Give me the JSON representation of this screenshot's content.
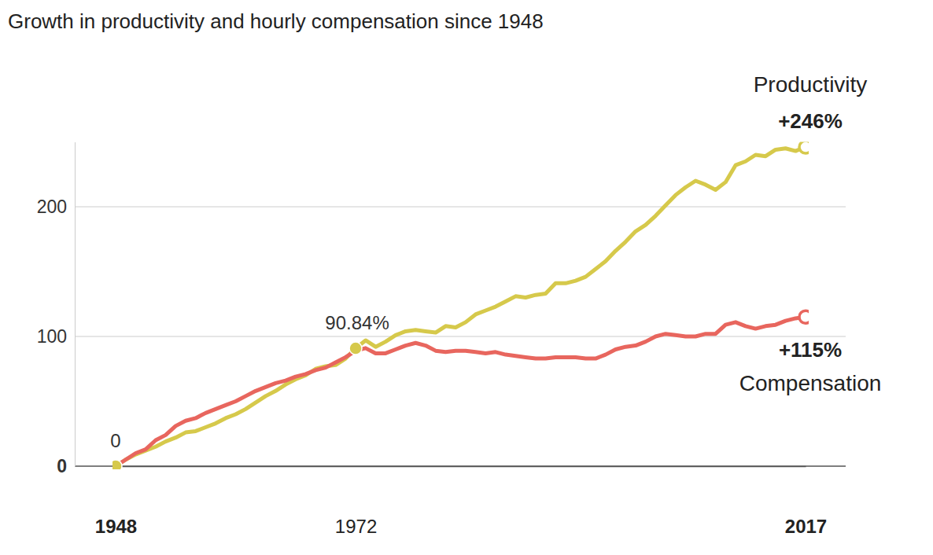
{
  "chart_data": {
    "type": "line",
    "title": "Growth in productivity and hourly compensation since 1948",
    "x": [
      1948,
      1949,
      1950,
      1951,
      1952,
      1953,
      1954,
      1955,
      1956,
      1957,
      1958,
      1959,
      1960,
      1961,
      1962,
      1963,
      1964,
      1965,
      1966,
      1967,
      1968,
      1969,
      1970,
      1971,
      1972,
      1973,
      1974,
      1975,
      1976,
      1977,
      1978,
      1979,
      1980,
      1981,
      1982,
      1983,
      1984,
      1985,
      1986,
      1987,
      1988,
      1989,
      1990,
      1991,
      1992,
      1993,
      1994,
      1995,
      1996,
      1997,
      1998,
      1999,
      2000,
      2001,
      2002,
      2003,
      2004,
      2005,
      2006,
      2007,
      2008,
      2009,
      2010,
      2011,
      2012,
      2013,
      2014,
      2015,
      2016,
      2017
    ],
    "series": [
      {
        "name": "Productivity",
        "color": "#d6c94b",
        "marker": "open-circle",
        "values": [
          0,
          5,
          9,
          12,
          15,
          19,
          22,
          26,
          27,
          30,
          33,
          37,
          40,
          44,
          49,
          54,
          58,
          63,
          67,
          70,
          75,
          77,
          78,
          83,
          90.84,
          97,
          92,
          96,
          101,
          104,
          105,
          104,
          103,
          108,
          107,
          111,
          117,
          120,
          123,
          127,
          131,
          130,
          132,
          133,
          141,
          141,
          143,
          146,
          152,
          158,
          166,
          173,
          181,
          186,
          193,
          201,
          209,
          215,
          220,
          217,
          213,
          219,
          232,
          235,
          240,
          239,
          244,
          245,
          243,
          246
        ]
      },
      {
        "name": "Compensation",
        "color": "#e8665e",
        "marker": "open-circle",
        "values": [
          0,
          5,
          10,
          13,
          20,
          24,
          31,
          35,
          37,
          41,
          44,
          47,
          50,
          54,
          58,
          61,
          64,
          66,
          69,
          71,
          74,
          76,
          80,
          84,
          89,
          91,
          87,
          87,
          90,
          93,
          95,
          93,
          89,
          88,
          89,
          89,
          88,
          87,
          88,
          86,
          85,
          84,
          83,
          83,
          84,
          84,
          84,
          83,
          83,
          86,
          90,
          92,
          93,
          96,
          100,
          102,
          101,
          100,
          100,
          102,
          102,
          109,
          111,
          108,
          106,
          108,
          109,
          112,
          114,
          115
        ]
      }
    ],
    "annotations": [
      {
        "text": "0",
        "x": 1948,
        "y": 0
      },
      {
        "text": "90.84%",
        "x": 1972,
        "y": 90.84
      },
      {
        "text": "+246%",
        "x": 2017,
        "y": 246
      },
      {
        "text": "+115%",
        "x": 2017,
        "y": 115
      }
    ],
    "xlim": [
      1948,
      2017
    ],
    "xticks": [
      1948,
      1972,
      2017
    ],
    "ylim": [
      0,
      250
    ],
    "yticks": [
      0,
      100,
      200
    ],
    "grid": true
  }
}
